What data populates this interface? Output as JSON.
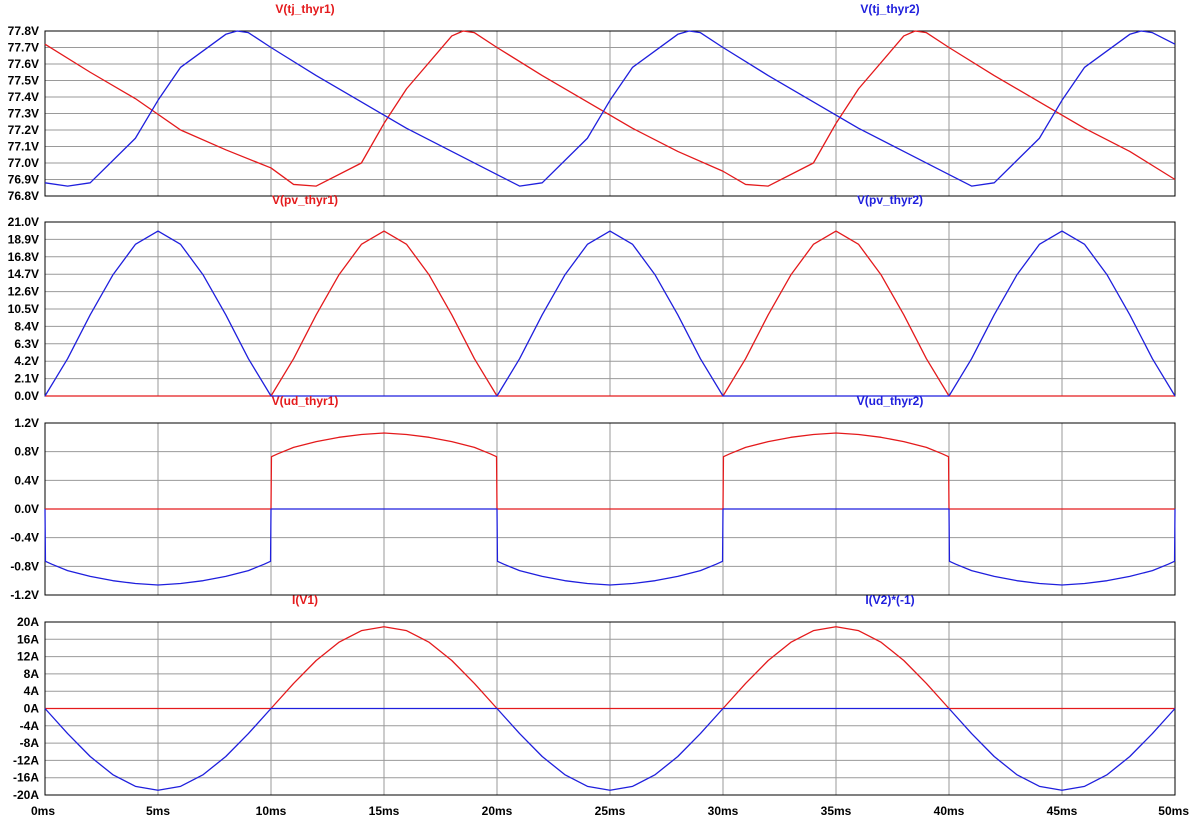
{
  "chart_data": [
    {
      "type": "line",
      "xlim": [
        0,
        50
      ],
      "ylim": [
        76.8,
        77.8
      ],
      "yticks": [
        "76.8V",
        "76.9V",
        "77.0V",
        "77.1V",
        "77.2V",
        "77.3V",
        "77.4V",
        "77.5V",
        "77.6V",
        "77.7V",
        "77.8V"
      ],
      "series": [
        {
          "name": "V(tj_thyr1)",
          "color": "#e41a1c",
          "x": [
            0,
            2,
            4,
            6,
            8,
            10,
            11,
            12,
            14,
            15,
            16,
            18,
            18.5,
            19,
            20,
            22,
            24,
            26,
            28,
            30,
            31,
            32,
            34,
            35,
            36,
            38,
            38.5,
            39,
            40,
            42,
            44,
            46,
            48,
            50
          ],
          "y": [
            77.72,
            77.55,
            77.39,
            77.2,
            77.08,
            76.97,
            76.87,
            76.86,
            77.0,
            77.24,
            77.45,
            77.77,
            77.8,
            77.79,
            77.7,
            77.53,
            77.37,
            77.21,
            77.07,
            76.95,
            76.87,
            76.86,
            77.0,
            77.24,
            77.45,
            77.77,
            77.8,
            77.79,
            77.7,
            77.53,
            77.37,
            77.21,
            77.07,
            76.9
          ]
        },
        {
          "name": "V(tj_thyr2)",
          "color": "#1f1fdd",
          "x": [
            0,
            1,
            2,
            4,
            5,
            6,
            8,
            8.5,
            9,
            10,
            12,
            14,
            16,
            18,
            20,
            21,
            22,
            24,
            25,
            26,
            28,
            28.5,
            29,
            30,
            32,
            34,
            36,
            38,
            40,
            41,
            42,
            44,
            45,
            46,
            48,
            48.5,
            49,
            50
          ],
          "y": [
            76.88,
            76.86,
            76.88,
            77.15,
            77.38,
            77.58,
            77.78,
            77.8,
            77.79,
            77.7,
            77.53,
            77.37,
            77.21,
            77.07,
            76.93,
            76.86,
            76.88,
            77.15,
            77.38,
            77.58,
            77.78,
            77.8,
            77.79,
            77.7,
            77.53,
            77.37,
            77.21,
            77.07,
            76.93,
            76.86,
            76.88,
            77.15,
            77.38,
            77.58,
            77.78,
            77.8,
            77.79,
            77.72
          ]
        }
      ]
    },
    {
      "type": "line",
      "xlim": [
        0,
        50
      ],
      "ylim": [
        0,
        21
      ],
      "yticks": [
        "0.0V",
        "2.1V",
        "4.2V",
        "6.3V",
        "8.4V",
        "10.5V",
        "12.6V",
        "14.7V",
        "16.8V",
        "18.9V",
        "21.0V"
      ],
      "series": [
        {
          "name": "V(pv_thyr1)",
          "color": "#e41a1c",
          "x": [
            0,
            10,
            11,
            12,
            13,
            14,
            15,
            16,
            17,
            18,
            19,
            20,
            30,
            31,
            32,
            33,
            34,
            35,
            36,
            37,
            38,
            39,
            40,
            50
          ],
          "y": [
            0,
            0,
            4.5,
            9.8,
            14.6,
            18.3,
            19.9,
            18.3,
            14.6,
            9.8,
            4.5,
            0,
            0,
            4.5,
            9.8,
            14.6,
            18.3,
            19.9,
            18.3,
            14.6,
            9.8,
            4.5,
            0,
            0
          ]
        },
        {
          "name": "V(pv_thyr2)",
          "color": "#1f1fdd",
          "x": [
            0,
            1,
            2,
            3,
            4,
            5,
            6,
            7,
            8,
            9,
            10,
            20,
            21,
            22,
            23,
            24,
            25,
            26,
            27,
            28,
            29,
            30,
            40,
            41,
            42,
            43,
            44,
            45,
            46,
            47,
            48,
            49,
            50
          ],
          "y": [
            0,
            4.5,
            9.8,
            14.6,
            18.3,
            19.9,
            18.3,
            14.6,
            9.8,
            4.5,
            0,
            0,
            4.5,
            9.8,
            14.6,
            18.3,
            19.9,
            18.3,
            14.6,
            9.8,
            4.5,
            0,
            0,
            4.5,
            9.8,
            14.6,
            18.3,
            19.9,
            18.3,
            14.6,
            9.8,
            4.5,
            0
          ]
        }
      ]
    },
    {
      "type": "line",
      "xlim": [
        0,
        50
      ],
      "ylim": [
        -1.2,
        1.2
      ],
      "yticks": [
        "-1.2V",
        "-0.8V",
        "-0.4V",
        "0.0V",
        "0.4V",
        "0.8V",
        "1.2V"
      ],
      "series": [
        {
          "name": "V(ud_thyr1)",
          "color": "#e41a1c",
          "x": [
            0,
            10,
            10.02,
            10.3,
            11,
            12,
            13,
            14,
            15,
            16,
            17,
            18,
            19,
            19.7,
            19.98,
            20,
            30,
            30.02,
            30.3,
            31,
            32,
            33,
            34,
            35,
            36,
            37,
            38,
            39,
            39.7,
            39.98,
            40,
            50
          ],
          "y": [
            0,
            0,
            0.73,
            0.77,
            0.86,
            0.94,
            1.0,
            1.04,
            1.06,
            1.04,
            1.0,
            0.94,
            0.86,
            0.77,
            0.73,
            0,
            0,
            0.73,
            0.77,
            0.86,
            0.94,
            1.0,
            1.04,
            1.06,
            1.04,
            1.0,
            0.94,
            0.86,
            0.77,
            0.73,
            0,
            0
          ]
        },
        {
          "name": "V(ud_thyr2)",
          "color": "#1f1fdd",
          "x": [
            0,
            0.02,
            0.3,
            1,
            2,
            3,
            4,
            5,
            6,
            7,
            8,
            9,
            9.7,
            9.98,
            10,
            20,
            20.02,
            20.3,
            21,
            22,
            23,
            24,
            25,
            26,
            27,
            28,
            29,
            29.7,
            29.98,
            30,
            40,
            40.02,
            40.3,
            41,
            42,
            43,
            44,
            45,
            46,
            47,
            48,
            49,
            49.7,
            49.98,
            50
          ],
          "y": [
            0,
            -0.73,
            -0.77,
            -0.86,
            -0.94,
            -1.0,
            -1.04,
            -1.06,
            -1.04,
            -1.0,
            -0.94,
            -0.86,
            -0.77,
            -0.73,
            0,
            0,
            -0.73,
            -0.77,
            -0.86,
            -0.94,
            -1.0,
            -1.04,
            -1.06,
            -1.04,
            -1.0,
            -0.94,
            -0.86,
            -0.77,
            -0.73,
            0,
            0,
            -0.73,
            -0.77,
            -0.86,
            -0.94,
            -1.0,
            -1.04,
            -1.06,
            -1.04,
            -1.0,
            -0.94,
            -0.86,
            -0.77,
            -0.73,
            0
          ]
        }
      ]
    },
    {
      "type": "line",
      "xlim": [
        0,
        50
      ],
      "ylim": [
        -20,
        20
      ],
      "yticks": [
        "-20A",
        "-16A",
        "-12A",
        "-8A",
        "-4A",
        "0A",
        "4A",
        "8A",
        "12A",
        "16A",
        "20A"
      ],
      "series": [
        {
          "name": "I(V1)",
          "color": "#e41a1c",
          "x": [
            0,
            10,
            11,
            12,
            13,
            14,
            15,
            16,
            17,
            18,
            19,
            20,
            30,
            31,
            32,
            33,
            34,
            35,
            36,
            37,
            38,
            39,
            40,
            50
          ],
          "y": [
            0,
            0,
            5.8,
            11.1,
            15.3,
            18.0,
            18.9,
            18.0,
            15.3,
            11.1,
            5.8,
            0,
            0,
            5.8,
            11.1,
            15.3,
            18.0,
            18.9,
            18.0,
            15.3,
            11.1,
            5.8,
            0,
            0
          ]
        },
        {
          "name": "I(V2)*(-1)",
          "color": "#1f1fdd",
          "x": [
            0,
            1,
            2,
            3,
            4,
            5,
            6,
            7,
            8,
            9,
            10,
            20,
            21,
            22,
            23,
            24,
            25,
            26,
            27,
            28,
            29,
            30,
            40,
            41,
            42,
            43,
            44,
            45,
            46,
            47,
            48,
            49,
            50
          ],
          "y": [
            0,
            -5.8,
            -11.1,
            -15.3,
            -18.0,
            -18.9,
            -18.0,
            -15.3,
            -11.1,
            -5.8,
            0,
            0,
            -5.8,
            -11.1,
            -15.3,
            -18.0,
            -18.9,
            -18.0,
            -15.3,
            -11.1,
            -5.8,
            0,
            0,
            -5.8,
            -11.1,
            -15.3,
            -18.0,
            -18.9,
            -18.0,
            -15.3,
            -11.1,
            -5.8,
            0
          ]
        }
      ]
    }
  ],
  "x_axis": {
    "values": [
      0,
      5,
      10,
      15,
      20,
      25,
      30,
      35,
      40,
      45,
      50
    ],
    "labels": [
      "0ms",
      "5ms",
      "10ms",
      "15ms",
      "20ms",
      "25ms",
      "30ms",
      "35ms",
      "40ms",
      "45ms",
      "50ms"
    ]
  }
}
